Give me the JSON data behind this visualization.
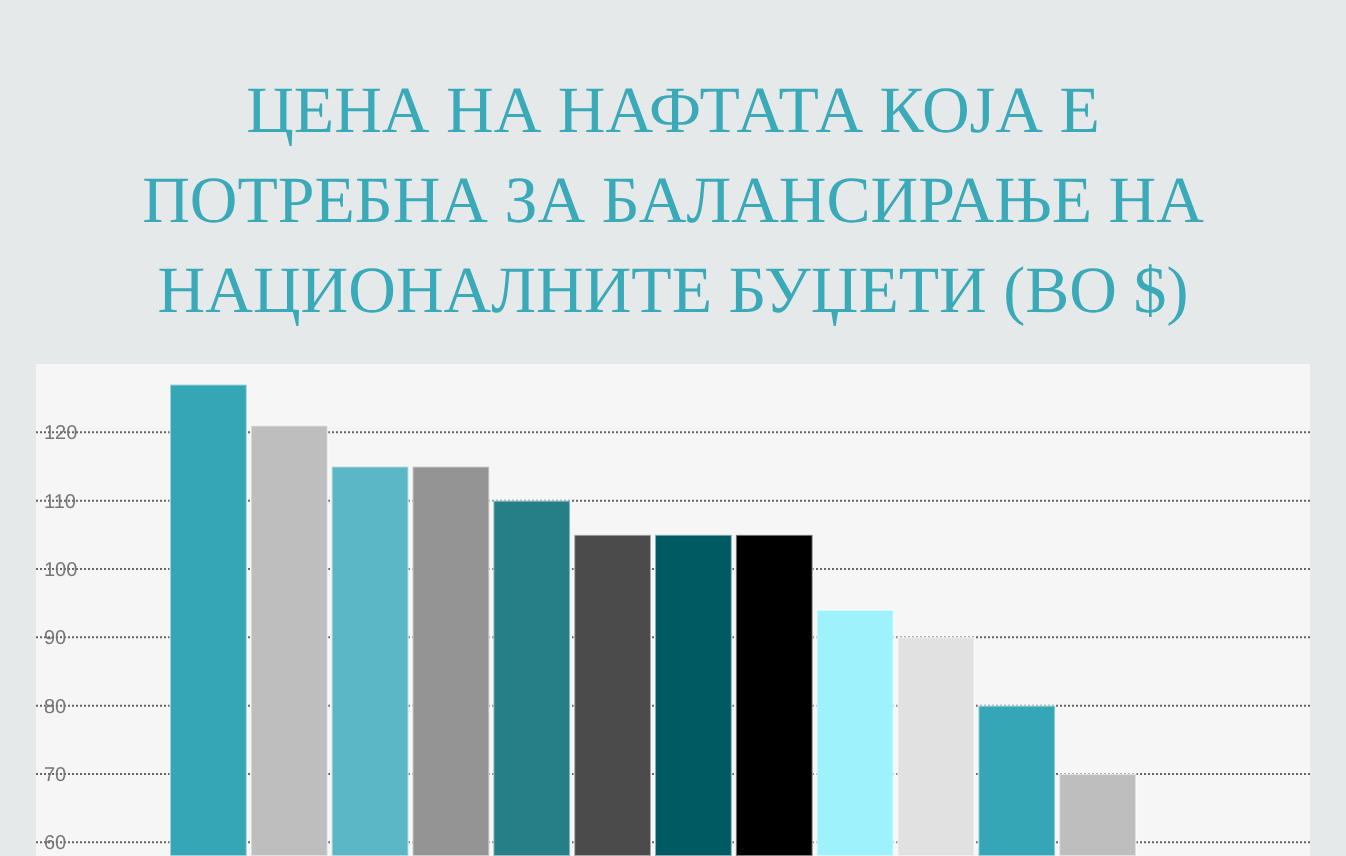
{
  "chart_data": {
    "type": "bar",
    "title": "ЦЕНА НА НАФТАТА КОЈА Е\nПОТРЕБНА ЗА БАЛАНСИРАЊЕ НА\nНАЦИОНАЛНИТЕ БУЏЕТИ (ВО $)",
    "categories": [
      null,
      null,
      null,
      null,
      null,
      null,
      null,
      null,
      null,
      null,
      null,
      null
    ],
    "values": [
      127,
      121,
      115,
      115,
      110,
      105,
      105,
      105,
      94,
      90,
      80,
      70
    ],
    "colors": [
      "#35a6b6",
      "#bebebe",
      "#5bb6c5",
      "#949494",
      "#267f87",
      "#4b4b4b",
      "#005a62",
      "#000000",
      "#9ef2fc",
      "#e1e1e1",
      "#35a6b6",
      "#bebebe"
    ],
    "ylim": [
      58,
      130
    ],
    "yticks": [
      60,
      70,
      80,
      90,
      100,
      110,
      120
    ],
    "grid": "y"
  }
}
